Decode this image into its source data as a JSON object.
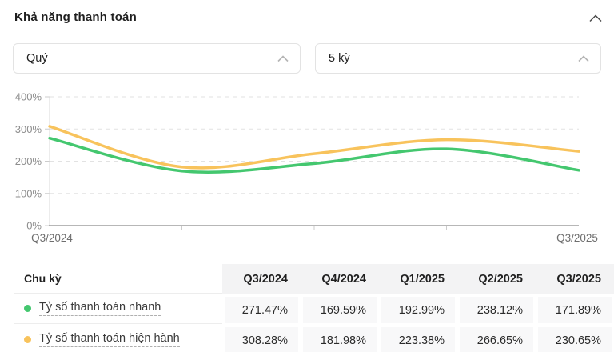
{
  "panel": {
    "title": "Khả năng thanh toán"
  },
  "controls": {
    "period_select": {
      "value": "Quý"
    },
    "range_select": {
      "value": "5 kỳ"
    }
  },
  "chart_data": {
    "type": "line",
    "categories": [
      "Q3/2024",
      "Q4/2024",
      "Q1/2025",
      "Q2/2025",
      "Q3/2025"
    ],
    "series": [
      {
        "name": "Tỷ số thanh toán nhanh",
        "color": "#44c76f",
        "values": [
          271.47,
          169.59,
          192.99,
          238.12,
          171.89
        ]
      },
      {
        "name": "Tỷ số thanh toán hiện hành",
        "color": "#f8c35c",
        "values": [
          308.28,
          181.98,
          223.38,
          266.65,
          230.65
        ]
      }
    ],
    "ylim": [
      0,
      400
    ],
    "yticks": [
      0,
      100,
      200,
      300,
      400
    ],
    "ytick_suffix": "%",
    "x_labels_visible": [
      "Q3/2024",
      "Q3/2025"
    ],
    "grid": "dashed-horizontal",
    "legend_position": "table-rows"
  },
  "table": {
    "period_header": "Chu kỳ",
    "columns": [
      "Q3/2024",
      "Q4/2024",
      "Q1/2025",
      "Q2/2025",
      "Q3/2025"
    ],
    "rows": [
      {
        "label": "Tỷ số thanh toán nhanh",
        "dot_color": "#44c76f",
        "values": [
          "271.47%",
          "169.59%",
          "192.99%",
          "238.12%",
          "171.89%"
        ]
      },
      {
        "label": "Tỷ số thanh toán hiện hành",
        "dot_color": "#f8c35c",
        "values": [
          "308.28%",
          "181.98%",
          "223.38%",
          "266.65%",
          "230.65%"
        ]
      }
    ]
  },
  "colors": {
    "green": "#44c76f",
    "yellow": "#f8c35c",
    "grid_line": "#e2e2e2",
    "axis_line": "#6f6f6f",
    "tick_mark": "#cccccc",
    "y_axis_line": "#d8d8d8",
    "muted_label": "#8d8d8d",
    "x_label": "#6e6e6e",
    "header_bg": "#f3f3f4",
    "cell_bg": "#f8f8f9"
  }
}
